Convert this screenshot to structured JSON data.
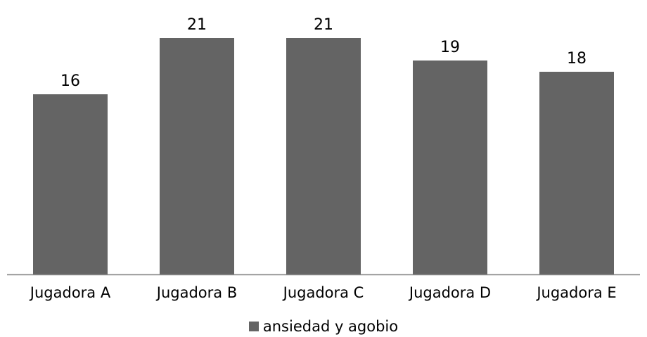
{
  "chart_data": {
    "type": "bar",
    "categories": [
      "Jugadora A",
      "Jugadora B",
      "Jugadora C",
      "Jugadora D",
      "Jugadora E"
    ],
    "series": [
      {
        "name": "ansiedad y agobio",
        "values": [
          16,
          21,
          21,
          19,
          18
        ],
        "color": "#646464"
      }
    ],
    "data_labels": [
      "16",
      "21",
      "21",
      "19",
      "18"
    ],
    "ylim": [
      0,
      21
    ],
    "grid": false,
    "legend_position": "bottom",
    "axis_color": "#868686"
  }
}
